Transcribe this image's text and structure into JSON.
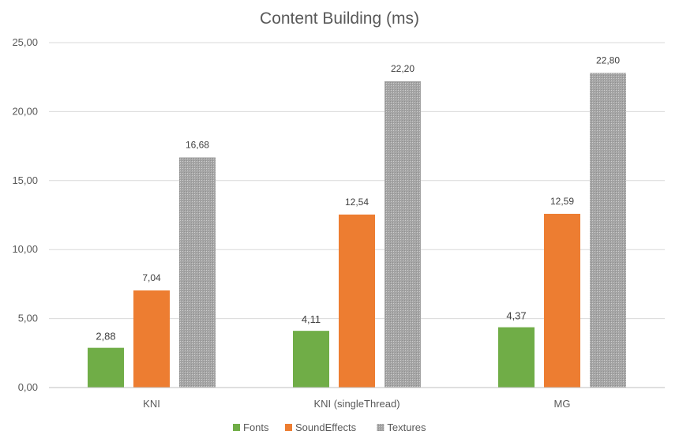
{
  "chart_data": {
    "type": "bar",
    "title": "Content Building (ms)",
    "xlabel": "",
    "ylabel": "",
    "categories": [
      "KNI",
      "KNI (singleThread)",
      "MG"
    ],
    "series": [
      {
        "name": "Fonts",
        "values": [
          2.88,
          4.11,
          4.37
        ],
        "labels": [
          "2,88",
          "4,11",
          "4,37"
        ],
        "color": "#70ad47"
      },
      {
        "name": "SoundEffects",
        "values": [
          7.04,
          12.54,
          12.59
        ],
        "labels": [
          "7,04",
          "12,54",
          "12,59"
        ],
        "color": "#ed7d31"
      },
      {
        "name": "Textures",
        "values": [
          16.68,
          22.2,
          22.8
        ],
        "labels": [
          "16,68",
          "22,20",
          "22,80"
        ],
        "color": "#a5a5a5",
        "pattern": "dotted-hatch"
      }
    ],
    "ylim": [
      0,
      25
    ],
    "yticks": [
      0,
      5,
      10,
      15,
      20,
      25
    ],
    "ytick_labels": [
      "0,00",
      "5,00",
      "10,00",
      "15,00",
      "20,00",
      "25,00"
    ],
    "grid": true,
    "legend_position": "bottom"
  }
}
